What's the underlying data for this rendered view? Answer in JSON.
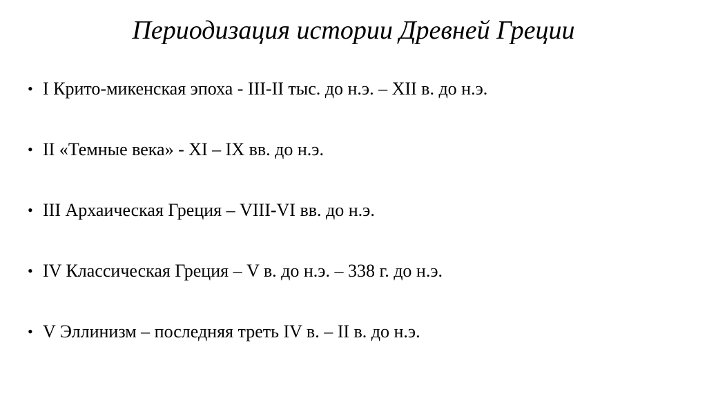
{
  "slide": {
    "title": "Периодизация истории Древней Греции",
    "title_fontsize": 38,
    "title_style": "italic",
    "body_fontsize": 26,
    "text_color": "#000000",
    "background_color": "#ffffff",
    "bullet_char": "•",
    "items": [
      "I Крито-микенская эпоха - III-II тыс. до н.э. – XII в. до н.э.",
      "II «Темные века» - XI – IX вв. до н.э.",
      "III Архаическая Греция – VIII-VI вв. до н.э.",
      "IV Классическая Греция – V в. до н.э. – 338 г. до н.э.",
      "V Эллинизм – последняя треть IV в. – II в. до н.э."
    ]
  }
}
